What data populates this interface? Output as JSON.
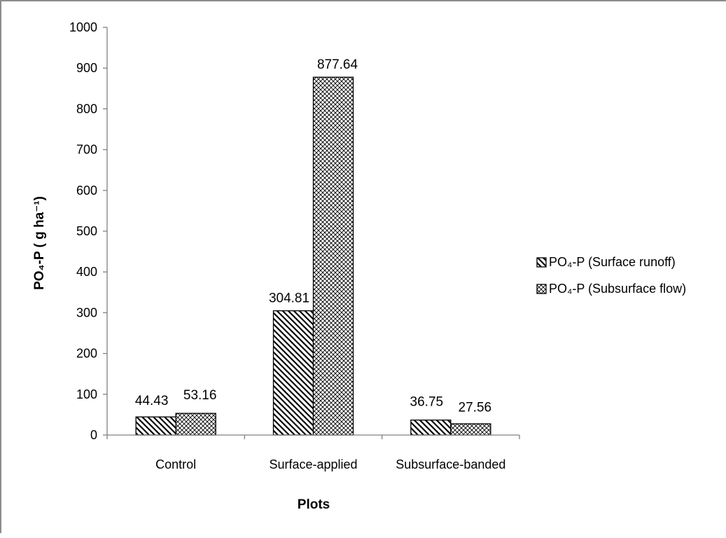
{
  "chart_data": {
    "type": "bar",
    "categories": [
      "Control",
      "Surface-applied",
      "Subsurface-banded"
    ],
    "series": [
      {
        "name": "PO₄-P (Surface runoff)",
        "values": [
          44.43,
          304.81,
          36.75
        ],
        "pattern": "diagonal-hatch"
      },
      {
        "name": "PO₄-P (Subsurface flow)",
        "values": [
          53.16,
          877.64,
          27.56
        ],
        "pattern": "crosshatch"
      }
    ],
    "data_labels": [
      [
        "44.43",
        "304.81",
        "36.75"
      ],
      [
        "53.16",
        "877.64",
        "27.56"
      ]
    ],
    "title": "",
    "xlabel": "Plots",
    "ylabel": "PO₄-P ( g ha⁻¹)",
    "ylim": [
      0,
      1000
    ],
    "yticks": [
      0,
      100,
      200,
      300,
      400,
      500,
      600,
      700,
      800,
      900,
      1000
    ],
    "ytick_labels": [
      "0",
      "100",
      "200",
      "300",
      "400",
      "500",
      "600",
      "700",
      "800",
      "900",
      "1000"
    ],
    "grid": false,
    "legend": "right",
    "colors": {
      "bar_fill": "#ffffff",
      "bar_stroke": "#000000",
      "hatch": "#000000",
      "axis": "#808080"
    }
  }
}
